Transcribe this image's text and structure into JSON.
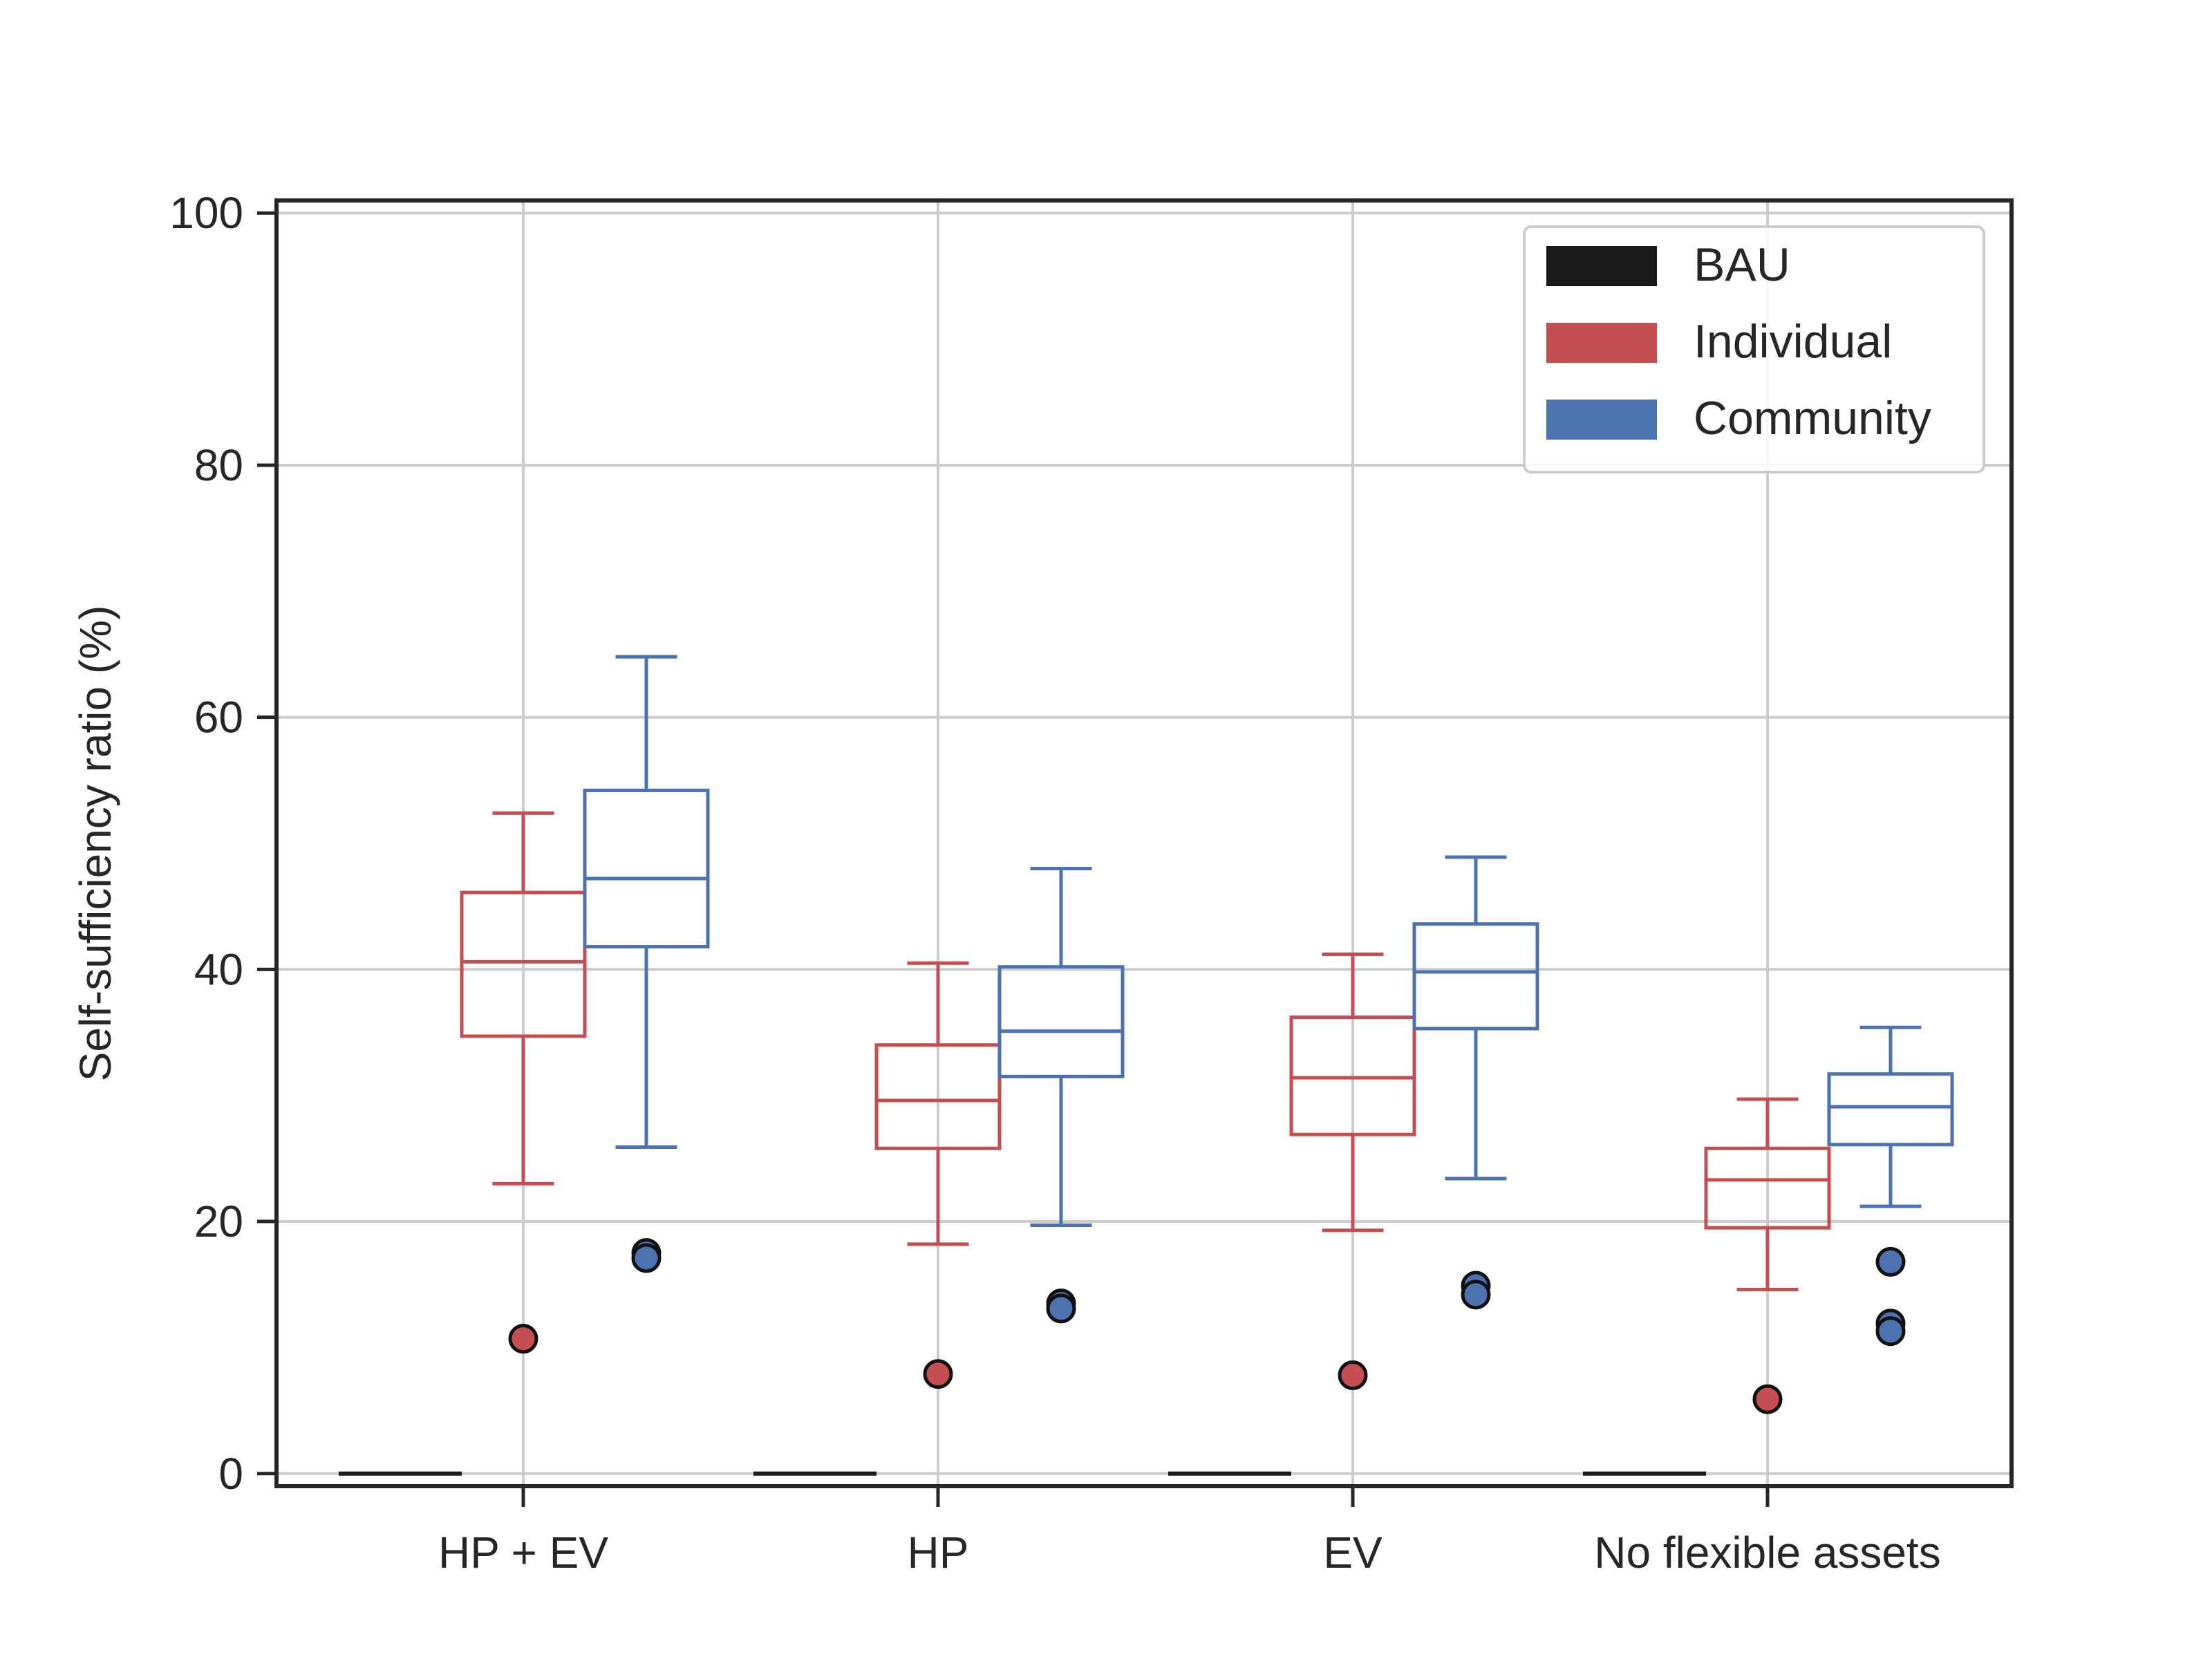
{
  "chart_data": {
    "type": "box",
    "title": "",
    "xlabel": "",
    "ylabel": "Self-sufficiency ratio (%)",
    "ylim": [
      -1,
      101
    ],
    "yticks": [
      0,
      20,
      40,
      60,
      80,
      100
    ],
    "grid": true,
    "legend_position": "top-right",
    "categories": [
      "HP + EV",
      "HP",
      "EV",
      "No flexible assets"
    ],
    "colors": {
      "BAU": "#1a1a1a",
      "Individual": "#c44e52",
      "Community": "#4c72b0"
    },
    "legend": [
      "BAU",
      "Individual",
      "Community"
    ],
    "series": [
      {
        "name": "BAU",
        "boxes": [
          {
            "whislo": 0,
            "q1": 0,
            "med": 0,
            "q3": 0,
            "whishi": 0,
            "fliers": []
          },
          {
            "whislo": 0,
            "q1": 0,
            "med": 0,
            "q3": 0,
            "whishi": 0,
            "fliers": []
          },
          {
            "whislo": 0,
            "q1": 0,
            "med": 0,
            "q3": 0,
            "whishi": 0,
            "fliers": []
          },
          {
            "whislo": 0,
            "q1": 0,
            "med": 0,
            "q3": 0,
            "whishi": 0,
            "fliers": []
          }
        ]
      },
      {
        "name": "Individual",
        "boxes": [
          {
            "whislo": 23.0,
            "q1": 34.7,
            "med": 40.6,
            "q3": 46.1,
            "whishi": 52.4,
            "fliers": [
              10.7
            ]
          },
          {
            "whislo": 18.2,
            "q1": 25.8,
            "med": 29.6,
            "q3": 34.0,
            "whishi": 40.5,
            "fliers": [
              7.9
            ]
          },
          {
            "whislo": 19.3,
            "q1": 26.9,
            "med": 31.4,
            "q3": 36.2,
            "whishi": 41.2,
            "fliers": [
              7.8
            ]
          },
          {
            "whislo": 14.6,
            "q1": 19.5,
            "med": 23.3,
            "q3": 25.8,
            "whishi": 29.7,
            "fliers": [
              5.9
            ]
          }
        ]
      },
      {
        "name": "Community",
        "boxes": [
          {
            "whislo": 25.9,
            "q1": 41.8,
            "med": 47.2,
            "q3": 54.2,
            "whishi": 64.8,
            "fliers": [
              17.5,
              17.1
            ]
          },
          {
            "whislo": 19.7,
            "q1": 31.5,
            "med": 35.1,
            "q3": 40.2,
            "whishi": 48.0,
            "fliers": [
              13.5,
              13.1
            ]
          },
          {
            "whislo": 23.4,
            "q1": 35.3,
            "med": 39.8,
            "q3": 43.6,
            "whishi": 48.9,
            "fliers": [
              14.9,
              14.2
            ]
          },
          {
            "whislo": 21.2,
            "q1": 26.1,
            "med": 29.1,
            "q3": 31.7,
            "whishi": 35.4,
            "fliers": [
              16.8,
              11.9,
              11.3
            ]
          }
        ]
      }
    ]
  }
}
